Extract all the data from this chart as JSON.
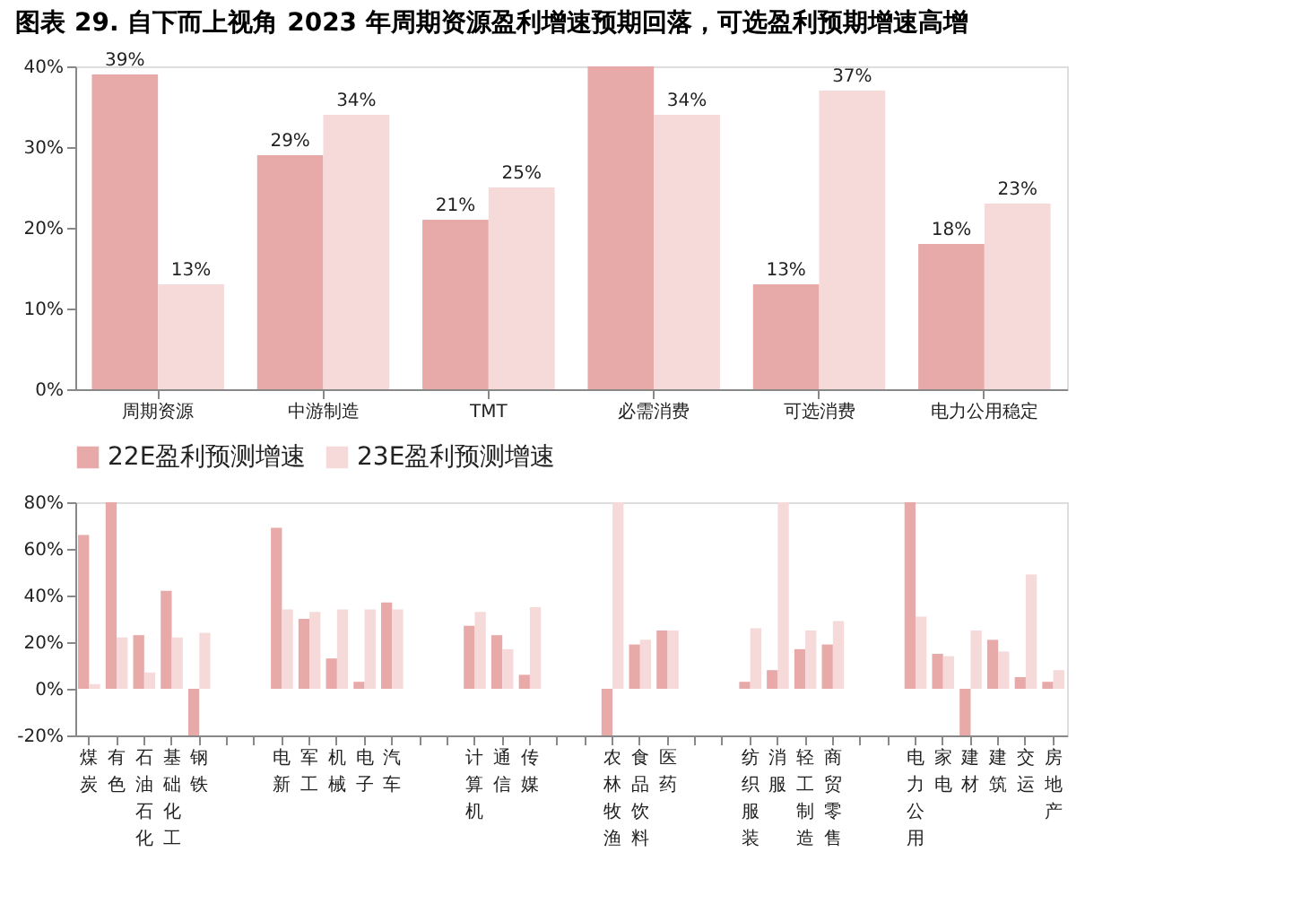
{
  "chart_data": [
    {
      "type": "bar",
      "title": "图表 29. 自下而上视角 2023 年周期资源盈利增速预期回落，可选盈利预期增速高增",
      "categories": [
        "周期资源",
        "中游制造",
        "TMT",
        "必需消费",
        "可选消费",
        "电力公用稳定"
      ],
      "series": [
        {
          "color": "#e8a9a9",
          "values": [
            39,
            29,
            21,
            40,
            13,
            18
          ],
          "value_labels": [
            "39%",
            "29%",
            "21%",
            null,
            "13%",
            "18%"
          ]
        },
        {
          "color": "#f6d9d9",
          "values": [
            13,
            34,
            25,
            34,
            37,
            23
          ],
          "value_labels": [
            "13%",
            "34%",
            "25%",
            "34%",
            "37%",
            "23%"
          ]
        }
      ],
      "ylim": [
        0,
        40
      ],
      "yticks": [
        {
          "value": 0,
          "label": "0%"
        },
        {
          "value": 10,
          "label": "10%"
        },
        {
          "value": 20,
          "label": "20%"
        },
        {
          "value": 30,
          "label": "30%"
        },
        {
          "value": 40,
          "label": "40%"
        }
      ],
      "grid": false,
      "legend": false
    },
    {
      "type": "bar",
      "categories": [
        "煤炭",
        "有色",
        "石油石化",
        "基础化工",
        "钢铁",
        null,
        null,
        "电新",
        "军工",
        "机械",
        "电子",
        "汽车",
        null,
        null,
        "计算机",
        "通信",
        "传媒",
        null,
        null,
        "农林牧渔",
        "食品饮料",
        "医药",
        null,
        null,
        "纺织服装",
        "消服",
        "轻工制造",
        "商贸零售",
        null,
        null,
        "电力公用",
        "家电",
        "建材",
        "建筑",
        "交运",
        "房地产"
      ],
      "series": [
        {
          "name": "22E盈利预测增速",
          "color": "#e8a9a9",
          "values": [
            66,
            80,
            23,
            42,
            -20,
            null,
            null,
            69,
            30,
            13,
            3,
            37,
            null,
            null,
            27,
            23,
            6,
            null,
            null,
            -20,
            19,
            25,
            null,
            null,
            3,
            8,
            17,
            19,
            null,
            null,
            80,
            15,
            -20,
            21,
            5,
            3
          ]
        },
        {
          "name": "23E盈利预测增速",
          "color": "#f6d9d9",
          "values": [
            2,
            22,
            7,
            22,
            24,
            null,
            null,
            34,
            33,
            34,
            34,
            34,
            null,
            null,
            33,
            17,
            35,
            null,
            null,
            80,
            21,
            25,
            null,
            null,
            26,
            80,
            25,
            29,
            null,
            null,
            31,
            14,
            25,
            16,
            49,
            8
          ]
        }
      ],
      "ylim": [
        -20,
        80
      ],
      "yticks": [
        {
          "value": -20,
          "label": "-20%"
        },
        {
          "value": 0,
          "label": "0%"
        },
        {
          "value": 20,
          "label": "20%"
        },
        {
          "value": 40,
          "label": "40%"
        },
        {
          "value": 60,
          "label": "60%"
        },
        {
          "value": 80,
          "label": "80%"
        }
      ],
      "grid": false,
      "legend": "top"
    }
  ]
}
